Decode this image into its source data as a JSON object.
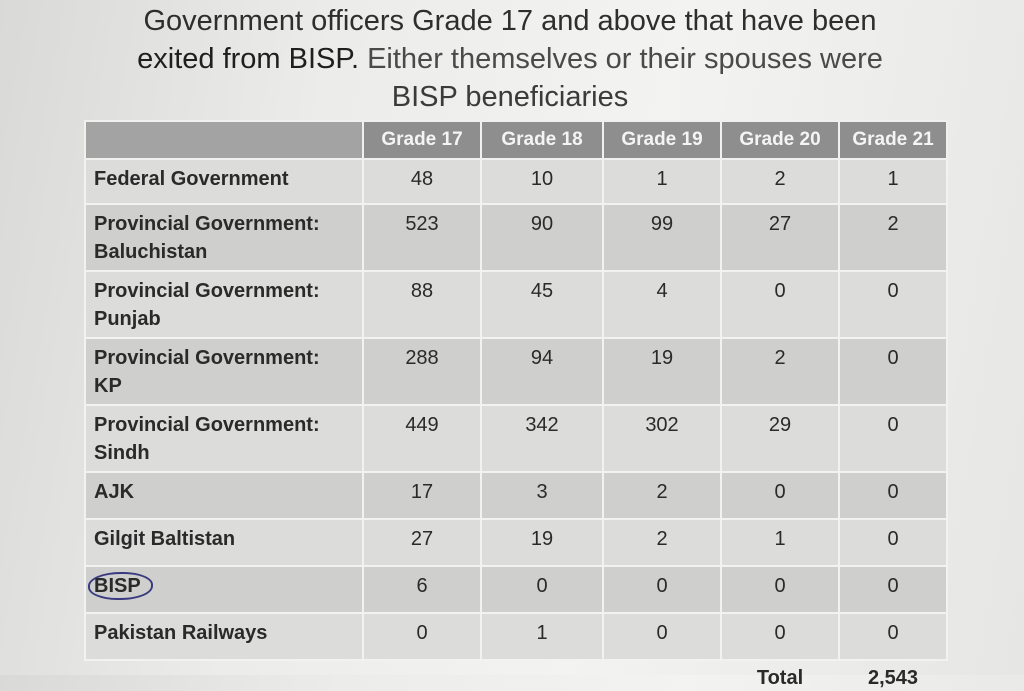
{
  "title": {
    "line1": "Government officers Grade 17 and above that have been",
    "line2_bold": "exited from BISP.",
    "line2_rest": " Either themselves or their spouses were",
    "line3": "BISP beneficiaries"
  },
  "table": {
    "headers": [
      "Grade 17",
      "Grade 18",
      "Grade 19",
      "Grade 20",
      "Grade 21"
    ],
    "rows": [
      {
        "l1": "Federal Government",
        "l2": "",
        "v": [
          "48",
          "10",
          "1",
          "2",
          "1"
        ]
      },
      {
        "l1": "Provincial Government:",
        "l2": "Baluchistan",
        "v": [
          "523",
          "90",
          "99",
          "27",
          "2"
        ]
      },
      {
        "l1": "Provincial Government:",
        "l2": "Punjab",
        "v": [
          "88",
          "45",
          "4",
          "0",
          "0"
        ]
      },
      {
        "l1": "Provincial Government:",
        "l2": "KP",
        "v": [
          "288",
          "94",
          "19",
          "2",
          "0"
        ]
      },
      {
        "l1": "Provincial Government:",
        "l2": "Sindh",
        "v": [
          "449",
          "342",
          "302",
          "29",
          "0"
        ]
      },
      {
        "l1": "AJK",
        "l2": "",
        "v": [
          "17",
          "3",
          "2",
          "0",
          "0"
        ]
      },
      {
        "l1": "Gilgit Baltistan",
        "l2": "",
        "v": [
          "27",
          "19",
          "2",
          "1",
          "0"
        ]
      },
      {
        "l1": "BISP",
        "l2": "",
        "v": [
          "6",
          "0",
          "0",
          "0",
          "0"
        ]
      },
      {
        "l1": "Pakistan Railways",
        "l2": "",
        "v": [
          "0",
          "1",
          "0",
          "0",
          "0"
        ]
      }
    ],
    "total_label": "Total",
    "total_value": "2,543"
  }
}
